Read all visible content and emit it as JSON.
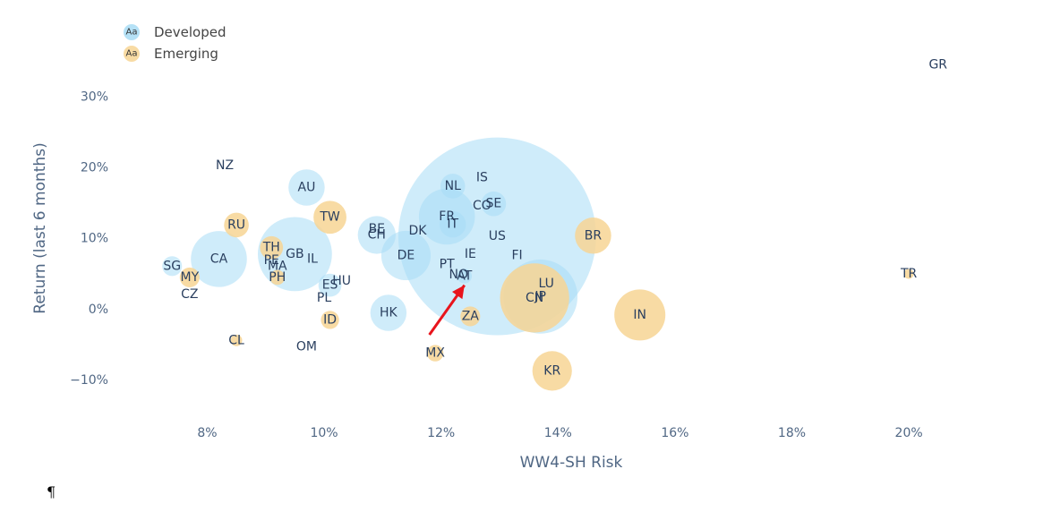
{
  "chart_data": {
    "type": "scatter",
    "xlabel": "WW4-SH Risk",
    "ylabel": "Return (last 6 months)",
    "xlim": [
      6.6,
      21.3
    ],
    "ylim": [
      -15.2,
      36.0
    ],
    "x_ticks": [
      8,
      10,
      12,
      14,
      16,
      18,
      20
    ],
    "x_tick_labels": [
      "8%",
      "10%",
      "12%",
      "14%",
      "16%",
      "18%",
      "20%"
    ],
    "y_ticks": [
      -10,
      0,
      10,
      20,
      30
    ],
    "y_tick_labels": [
      "−10%",
      "0%",
      "10%",
      "20%",
      "30%"
    ],
    "grid": false,
    "legend_position": "top-left",
    "legend_swatch_text": "Aa",
    "series": [
      {
        "name": "Developed",
        "color": "#a8dcf5",
        "points": [
          {
            "label": "NZ",
            "x": 8.3,
            "y": 20.2,
            "size": 0
          },
          {
            "label": "AU",
            "x": 9.7,
            "y": 17.1,
            "size": 2.2
          },
          {
            "label": "SG",
            "x": 7.4,
            "y": 6.0,
            "size": 1.2
          },
          {
            "label": "CA",
            "x": 8.2,
            "y": 7.0,
            "size": 3.4
          },
          {
            "label": "GB",
            "x": 9.5,
            "y": 7.7,
            "size": 4.5
          },
          {
            "label": "IL",
            "x": 9.8,
            "y": 7.0,
            "size": 0
          },
          {
            "label": "BE",
            "x": 10.9,
            "y": 11.2,
            "size": 0
          },
          {
            "label": "CH",
            "x": 10.9,
            "y": 10.4,
            "size": 2.3
          },
          {
            "label": "DK",
            "x": 11.6,
            "y": 11.0,
            "size": 0
          },
          {
            "label": "DE",
            "x": 11.4,
            "y": 7.5,
            "size": 3.0
          },
          {
            "label": "NL",
            "x": 12.2,
            "y": 17.3,
            "size": 1.5
          },
          {
            "label": "IS",
            "x": 12.7,
            "y": 18.5,
            "size": 0
          },
          {
            "label": "SE",
            "x": 12.9,
            "y": 14.8,
            "size": 1.5
          },
          {
            "label": "FR",
            "x": 12.1,
            "y": 13.0,
            "size": 3.4
          },
          {
            "label": "IT",
            "x": 12.2,
            "y": 11.9,
            "size": 1.6
          },
          {
            "label": "US",
            "x": 12.96,
            "y": 10.2,
            "size": 12.0
          },
          {
            "label": "IE",
            "x": 12.5,
            "y": 7.7,
            "size": 0
          },
          {
            "label": "FI",
            "x": 13.3,
            "y": 7.5,
            "size": 0
          },
          {
            "label": "PT",
            "x": 12.1,
            "y": 6.2,
            "size": 0
          },
          {
            "label": "NO",
            "x": 12.3,
            "y": 4.8,
            "size": 0
          },
          {
            "label": "AT",
            "x": 12.4,
            "y": 4.6,
            "size": 0.9
          },
          {
            "label": "ES",
            "x": 10.1,
            "y": 3.3,
            "size": 1.4
          },
          {
            "label": "HK",
            "x": 11.1,
            "y": -0.6,
            "size": 2.2
          },
          {
            "label": "JP",
            "x": 13.7,
            "y": 1.7,
            "size": 4.5
          },
          {
            "label": "LU",
            "x": 13.8,
            "y": 3.5,
            "size": 0
          },
          {
            "label": "GR",
            "x": 20.5,
            "y": 34.4,
            "size": 0
          }
        ]
      },
      {
        "name": "Emerging",
        "color": "#f7d594",
        "points": [
          {
            "label": "RU",
            "x": 8.5,
            "y": 11.8,
            "size": 1.5
          },
          {
            "label": "TW",
            "x": 10.1,
            "y": 12.9,
            "size": 2.0
          },
          {
            "label": "TH",
            "x": 9.1,
            "y": 8.6,
            "size": 1.4
          },
          {
            "label": "PE",
            "x": 9.1,
            "y": 6.8,
            "size": 0
          },
          {
            "label": "MA",
            "x": 9.2,
            "y": 6.0,
            "size": 0
          },
          {
            "label": "PH",
            "x": 9.2,
            "y": 4.4,
            "size": 0.9
          },
          {
            "label": "MY",
            "x": 7.7,
            "y": 4.4,
            "size": 1.2
          },
          {
            "label": "CZ",
            "x": 7.7,
            "y": 2.0,
            "size": 0
          },
          {
            "label": "HU",
            "x": 10.3,
            "y": 3.9,
            "size": 0
          },
          {
            "label": "PL",
            "x": 10.0,
            "y": 1.5,
            "size": 0
          },
          {
            "label": "ID",
            "x": 10.1,
            "y": -1.6,
            "size": 1.1
          },
          {
            "label": "CL",
            "x": 8.5,
            "y": -4.5,
            "size": 0.7
          },
          {
            "label": "OM",
            "x": 9.7,
            "y": -5.4,
            "size": 0
          },
          {
            "label": "CO",
            "x": 12.7,
            "y": 14.5,
            "size": 0
          },
          {
            "label": "MX",
            "x": 11.9,
            "y": -6.3,
            "size": 1.0
          },
          {
            "label": "ZA",
            "x": 12.5,
            "y": -1.1,
            "size": 1.2
          },
          {
            "label": "CN",
            "x": 13.6,
            "y": 1.5,
            "size": 4.2
          },
          {
            "label": "BR",
            "x": 14.6,
            "y": 10.3,
            "size": 2.2
          },
          {
            "label": "IN",
            "x": 15.4,
            "y": -0.9,
            "size": 3.1
          },
          {
            "label": "KR",
            "x": 13.9,
            "y": -8.8,
            "size": 2.4
          },
          {
            "label": "TR",
            "x": 20.0,
            "y": 4.9,
            "size": 0.6
          }
        ]
      }
    ]
  },
  "annotation": {
    "type": "arrow",
    "color": "#e8141c",
    "from": [
      11.8,
      -3.7
    ],
    "to": [
      12.4,
      3.3
    ]
  },
  "footer": {
    "pilcrow": "¶"
  }
}
